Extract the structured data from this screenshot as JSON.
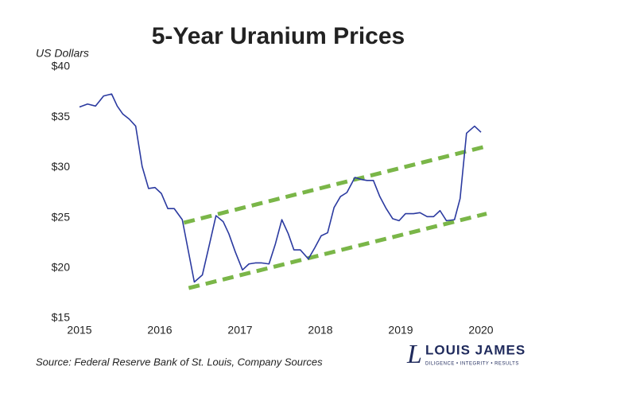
{
  "chart_data": {
    "type": "line",
    "title": "5-Year Uranium Prices",
    "y_axis_label": "US Dollars",
    "source": "Source: Federal Reserve Bank of St. Louis, Company Sources",
    "logo": {
      "mark": "L",
      "name": "LOUIS JAMES",
      "tagline": "DILIGENCE • INTEGRITY • RESULTS"
    },
    "xlim": [
      2015,
      2020
    ],
    "xticks": [
      2015,
      2016,
      2017,
      2018,
      2019,
      2020
    ],
    "ylim": [
      15,
      40
    ],
    "yticks": [
      {
        "value": 15,
        "label": "$15"
      },
      {
        "value": 20,
        "label": "$20"
      },
      {
        "value": 25,
        "label": "$25"
      },
      {
        "value": 30,
        "label": "$30"
      },
      {
        "value": 35,
        "label": "$35"
      },
      {
        "value": 40,
        "label": "$40"
      }
    ],
    "grid": false,
    "series": [
      {
        "color": "#2b3aa0",
        "x": [
          2015.0,
          2015.1,
          2015.2,
          2015.3,
          2015.4,
          2015.47,
          2015.54,
          2015.62,
          2015.7,
          2015.78,
          2015.86,
          2015.94,
          2016.02,
          2016.1,
          2016.18,
          2016.28,
          2016.36,
          2016.43,
          2016.53,
          2016.62,
          2016.7,
          2016.79,
          2016.86,
          2016.94,
          2017.03,
          2017.11,
          2017.19,
          2017.27,
          2017.36,
          2017.44,
          2017.52,
          2017.6,
          2017.67,
          2017.75,
          2017.85,
          2017.93,
          2018.01,
          2018.09,
          2018.17,
          2018.25,
          2018.33,
          2018.43,
          2018.51,
          2018.58,
          2018.66,
          2018.74,
          2018.82,
          2018.9,
          2018.98,
          2019.06,
          2019.16,
          2019.24,
          2019.33,
          2019.41,
          2019.49,
          2019.57,
          2019.67,
          2019.74,
          2019.82,
          2019.92,
          2020.0
        ],
        "values": [
          36.0,
          36.3,
          36.1,
          37.1,
          37.3,
          36.1,
          35.3,
          34.8,
          34.1,
          30.1,
          27.9,
          28.0,
          27.4,
          25.9,
          25.9,
          24.8,
          21.5,
          18.6,
          19.3,
          22.4,
          25.2,
          24.6,
          23.4,
          21.6,
          19.8,
          20.4,
          20.5,
          20.5,
          20.4,
          22.4,
          24.8,
          23.4,
          21.8,
          21.8,
          20.9,
          22.0,
          23.2,
          23.5,
          26.0,
          27.1,
          27.5,
          29.0,
          28.8,
          28.7,
          28.7,
          27.1,
          25.9,
          24.9,
          24.7,
          25.4,
          25.4,
          25.5,
          25.1,
          25.1,
          25.7,
          24.7,
          24.8,
          26.9,
          33.4,
          34.1,
          33.5
        ]
      }
    ],
    "trend_lines": [
      {
        "color": "#7ab648",
        "x": [
          2016.3,
          2020.07
        ],
        "values": [
          24.5,
          32.1
        ]
      },
      {
        "color": "#7ab648",
        "x": [
          2016.36,
          2020.07
        ],
        "values": [
          18.0,
          25.4
        ]
      }
    ]
  }
}
